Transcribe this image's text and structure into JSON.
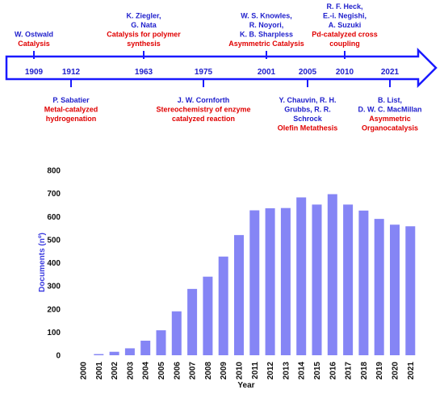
{
  "timeline": {
    "events": [
      {
        "year": "1909",
        "names": [
          "W. Ostwald"
        ],
        "topic": [
          "Catalysis"
        ]
      },
      {
        "year": "1912",
        "names": [
          "P. Sabatier"
        ],
        "topic": [
          "Metal-catalyzed",
          "hydrogenation"
        ]
      },
      {
        "year": "1963",
        "names": [
          "K. Ziegler,",
          "G. Nata"
        ],
        "topic": [
          "Catalysis for polymer",
          "synthesis"
        ]
      },
      {
        "year": "1975",
        "names": [
          "J. W. Cornforth"
        ],
        "topic": [
          "Stereochemistry of enzyme",
          "catalyzed reaction"
        ]
      },
      {
        "year": "2001",
        "names": [
          "W. S. Knowles,",
          "R. Noyori,",
          "K. B. Sharpless"
        ],
        "topic": [
          "Asymmetric Catalysis"
        ]
      },
      {
        "year": "2005",
        "names": [
          "Y. Chauvin, R. H.",
          "Grubbs, R. R.",
          "Schrock"
        ],
        "topic": [
          "Olefin Metathesis"
        ]
      },
      {
        "year": "2010",
        "names": [
          "R. F. Heck,",
          "E.-i. Negishi,",
          "A. Suzuki"
        ],
        "topic": [
          "Pd-catalyzed cross",
          "coupling"
        ]
      },
      {
        "year": "2021",
        "names": [
          "B. List,",
          "D. W. C. MacMillan"
        ],
        "topic": [
          "Asymmetric",
          "Organocatalysis"
        ]
      }
    ]
  },
  "chart_data": {
    "type": "bar",
    "categories": [
      "2000",
      "2001",
      "2002",
      "2003",
      "2004",
      "2005",
      "2006",
      "2007",
      "2008",
      "2009",
      "2010",
      "2011",
      "2012",
      "2013",
      "2014",
      "2015",
      "2016",
      "2017",
      "2018",
      "2019",
      "2020",
      "2021"
    ],
    "values": [
      0,
      5,
      15,
      30,
      63,
      108,
      190,
      287,
      340,
      427,
      520,
      627,
      636,
      637,
      683,
      652,
      697,
      652,
      626,
      590,
      565,
      558
    ],
    "color": "#8585f5",
    "ylim": [
      0,
      800
    ],
    "yticks": [
      0,
      100,
      200,
      300,
      400,
      500,
      600,
      700,
      800
    ],
    "xlabel": "Year",
    "ylabel": "Documents (nº)"
  }
}
